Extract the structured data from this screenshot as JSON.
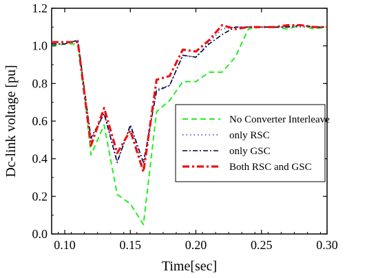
{
  "chart_data": {
    "type": "line",
    "xlabel": "Time[sec]",
    "ylabel": "Dc-link voltage [pu]",
    "xlim": [
      0.09,
      0.3
    ],
    "ylim": [
      0.0,
      1.2
    ],
    "xticks": [
      0.1,
      0.15,
      0.2,
      0.25,
      0.3
    ],
    "xtick_labels": [
      "0.10",
      "0.15",
      "0.20",
      "0.25",
      "0.30"
    ],
    "yticks": [
      0.0,
      0.2,
      0.4,
      0.6,
      0.8,
      1.0,
      1.2
    ],
    "ytick_labels": [
      "0.0",
      "0.2",
      "0.4",
      "0.6",
      "0.8",
      "1.0",
      "1.2"
    ],
    "legend_position": "center-right",
    "series": [
      {
        "name": "No Converter Interleave",
        "color": "#22ee22",
        "style": "dash",
        "x": [
          0.09,
          0.1,
          0.11,
          0.115,
          0.12,
          0.13,
          0.14,
          0.15,
          0.16,
          0.17,
          0.18,
          0.19,
          0.2,
          0.21,
          0.22,
          0.23,
          0.24,
          0.25,
          0.26,
          0.27,
          0.28,
          0.29,
          0.3
        ],
        "y": [
          1.0,
          1.01,
          1.01,
          0.75,
          0.42,
          0.58,
          0.21,
          0.16,
          0.05,
          0.65,
          0.71,
          0.81,
          0.81,
          0.86,
          0.86,
          0.94,
          1.09,
          1.1,
          1.1,
          1.09,
          1.11,
          1.09,
          1.1
        ]
      },
      {
        "name": "only RSC",
        "color": "#3333cc",
        "style": "dot",
        "x": [
          0.09,
          0.1,
          0.11,
          0.12,
          0.13,
          0.14,
          0.15,
          0.16,
          0.17,
          0.18,
          0.19,
          0.2,
          0.21,
          0.22,
          0.23,
          0.24,
          0.25,
          0.26,
          0.27,
          0.28,
          0.29,
          0.3
        ],
        "y": [
          1.01,
          1.01,
          1.03,
          0.5,
          0.64,
          0.39,
          0.57,
          0.35,
          0.77,
          0.79,
          0.95,
          0.94,
          1.02,
          1.09,
          1.1,
          1.1,
          1.1,
          1.1,
          1.1,
          1.1,
          1.1,
          1.1
        ]
      },
      {
        "name": "only GSC",
        "color": "#000033",
        "style": "dashdot",
        "x": [
          0.09,
          0.1,
          0.11,
          0.12,
          0.13,
          0.14,
          0.15,
          0.16,
          0.17,
          0.18,
          0.19,
          0.2,
          0.21,
          0.22,
          0.23,
          0.24,
          0.25,
          0.26,
          0.27,
          0.28,
          0.29,
          0.3
        ],
        "y": [
          1.01,
          1.01,
          1.03,
          0.51,
          0.64,
          0.38,
          0.58,
          0.38,
          0.76,
          0.79,
          0.95,
          0.94,
          1.01,
          1.06,
          1.1,
          1.1,
          1.1,
          1.1,
          1.1,
          1.11,
          1.1,
          1.1
        ]
      },
      {
        "name": "Both RSC and GSC",
        "color": "#ee1111",
        "style": "dashdot-thick",
        "x": [
          0.09,
          0.1,
          0.11,
          0.12,
          0.13,
          0.14,
          0.15,
          0.16,
          0.17,
          0.18,
          0.19,
          0.2,
          0.21,
          0.22,
          0.23,
          0.24,
          0.25,
          0.26,
          0.27,
          0.28,
          0.29,
          0.3
        ],
        "y": [
          1.02,
          1.02,
          1.02,
          0.47,
          0.67,
          0.43,
          0.55,
          0.33,
          0.82,
          0.84,
          0.98,
          0.97,
          1.03,
          1.11,
          1.09,
          1.1,
          1.1,
          1.1,
          1.11,
          1.11,
          1.1,
          1.1
        ]
      }
    ]
  }
}
